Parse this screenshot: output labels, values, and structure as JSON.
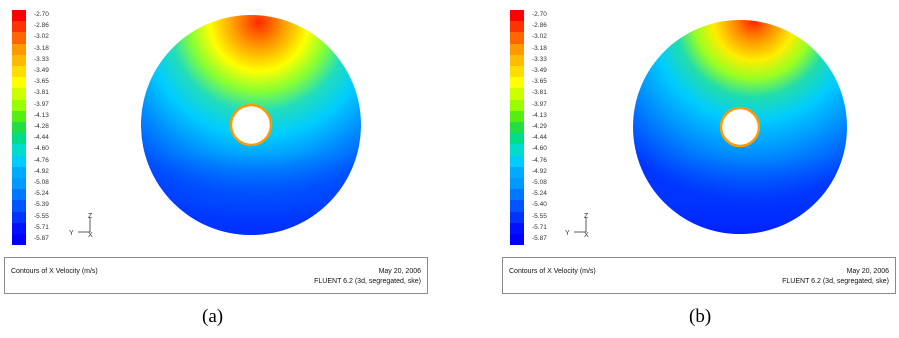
{
  "panels": [
    {
      "id": "a",
      "caption": "(a)",
      "legend_values": [
        "-2.70",
        "-2.86",
        "-3.02",
        "-3.18",
        "-3.33",
        "-3.49",
        "-3.65",
        "-3.81",
        "-3.97",
        "-4.13",
        "-4.28",
        "-4.44",
        "-4.60",
        "-4.76",
        "-4.92",
        "-5.08",
        "-5.24",
        "-5.39",
        "-5.55",
        "-5.71",
        "-5.87"
      ],
      "info_title": "Contours of X Velocity (m/s)",
      "info_date": "May 20, 2006",
      "info_version": "FLUENT 6.2 (3d, segregated, ske)",
      "axis_labels": {
        "vertical": "Z",
        "horizontal": "Y",
        "depth": "X"
      }
    },
    {
      "id": "b",
      "caption": "(b)",
      "legend_values": [
        "-2.70",
        "-2.86",
        "-3.02",
        "-3.18",
        "-3.33",
        "-3.49",
        "-3.65",
        "-3.81",
        "-3.97",
        "-4.13",
        "-4.29",
        "-4.44",
        "-4.60",
        "-4.76",
        "-4.92",
        "-5.08",
        "-5.24",
        "-5.40",
        "-5.55",
        "-5.71",
        "-5.87"
      ],
      "info_title": "Contours of X Velocity (m/s)",
      "info_date": "May 20, 2006",
      "info_version": "FLUENT 6.2 (3d, segregated, ske)",
      "axis_labels": {
        "vertical": "Z",
        "horizontal": "Y",
        "depth": "X"
      }
    }
  ],
  "colors": {
    "legend_scale": [
      "#ff0000",
      "#ff3300",
      "#ff6600",
      "#ff9900",
      "#ffbb00",
      "#ffdd00",
      "#ffff00",
      "#ccff00",
      "#99ff00",
      "#55ee11",
      "#22dd44",
      "#00dd88",
      "#00ddcc",
      "#00ccff",
      "#00aaff",
      "#0099ff",
      "#0077ff",
      "#0055ff",
      "#0033ff",
      "#0011ff",
      "#0000ff"
    ]
  }
}
